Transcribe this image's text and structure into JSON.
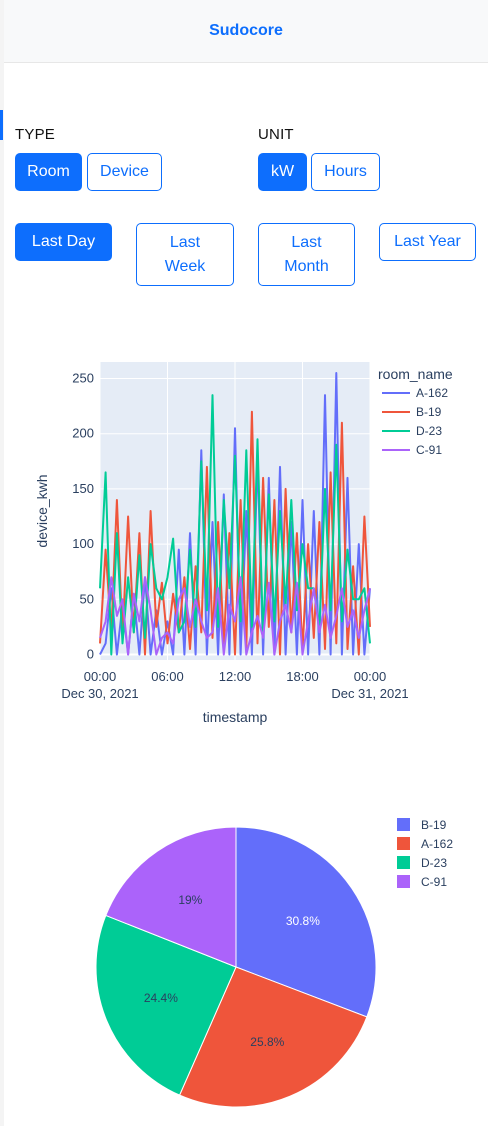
{
  "header": {
    "brand": "Sudocore"
  },
  "filters": {
    "type_label": "TYPE",
    "type_options": [
      "Room",
      "Device"
    ],
    "type_selected": "Room",
    "unit_label": "UNIT",
    "unit_options": [
      "kW",
      "Hours"
    ],
    "unit_selected": "kW",
    "period_options": [
      {
        "line1": "Last Day",
        "line2": ""
      },
      {
        "line1": "Last",
        "line2": "Week"
      },
      {
        "line1": "Last",
        "line2": "Month"
      },
      {
        "line1": "Last Year",
        "line2": ""
      }
    ],
    "period_selected": "Last Day"
  },
  "colors": {
    "accent": "#0d6efd",
    "plot_bg": "#e5ecf6",
    "A-162": "#636efa",
    "B-19": "#ef553b",
    "D-23": "#00cc96",
    "C-91": "#ab63fa"
  },
  "chart_data": [
    {
      "type": "line",
      "xlabel": "timestamp",
      "ylabel": "device_kwh",
      "ylim": [
        -5,
        265
      ],
      "yticks": [
        0,
        50,
        100,
        150,
        200,
        250
      ],
      "xlim": [
        0,
        24
      ],
      "xticks": [
        {
          "x": 0,
          "label": "00:00",
          "sub": "Dec 30, 2021"
        },
        {
          "x": 6,
          "label": "06:00",
          "sub": ""
        },
        {
          "x": 12,
          "label": "12:00",
          "sub": ""
        },
        {
          "x": 18,
          "label": "18:00",
          "sub": ""
        },
        {
          "x": 24,
          "label": "00:00",
          "sub": "Dec 31, 2021"
        }
      ],
      "legend_title": "room_name",
      "legend_position": "right",
      "grid": true,
      "series": [
        {
          "name": "A-162",
          "x": [
            0,
            0.5,
            1,
            1.5,
            2,
            2.5,
            3,
            3.5,
            4,
            4.5,
            5,
            5.5,
            6,
            6.5,
            7,
            7.5,
            8,
            8.5,
            9,
            9.5,
            10,
            10.5,
            11,
            11.5,
            12,
            12.5,
            13,
            13.5,
            14,
            14.5,
            15,
            15.5,
            16,
            16.5,
            17,
            17.5,
            18,
            18.5,
            19,
            19.5,
            20,
            20.5,
            21,
            21.5,
            22,
            22.5,
            23,
            23.5,
            24
          ],
          "y": [
            0,
            10,
            60,
            0,
            45,
            0,
            55,
            0,
            70,
            0,
            40,
            0,
            30,
            0,
            95,
            0,
            110,
            0,
            185,
            0,
            120,
            0,
            145,
            0,
            205,
            0,
            130,
            0,
            180,
            0,
            160,
            0,
            170,
            0,
            120,
            0,
            140,
            0,
            130,
            0,
            235,
            0,
            255,
            0,
            160,
            0,
            100,
            0,
            60
          ]
        },
        {
          "name": "B-19",
          "x": [
            0,
            0.5,
            1,
            1.5,
            2,
            2.5,
            3,
            3.5,
            4,
            4.5,
            5,
            5.5,
            6,
            6.5,
            7,
            7.5,
            8,
            8.5,
            9,
            9.5,
            10,
            10.5,
            11,
            11.5,
            12,
            12.5,
            13,
            13.5,
            14,
            14.5,
            15,
            15.5,
            16,
            16.5,
            17,
            17.5,
            18,
            18.5,
            19,
            19.5,
            20,
            20.5,
            21,
            21.5,
            22,
            22.5,
            23,
            23.5,
            24
          ],
          "y": [
            10,
            95,
            20,
            140,
            15,
            125,
            20,
            110,
            0,
            130,
            25,
            65,
            10,
            55,
            20,
            70,
            5,
            80,
            20,
            170,
            15,
            120,
            10,
            110,
            0,
            140,
            5,
            220,
            10,
            160,
            25,
            140,
            0,
            150,
            20,
            110,
            5,
            100,
            15,
            120,
            5,
            165,
            10,
            210,
            5,
            80,
            0,
            125,
            25
          ]
        },
        {
          "name": "D-23",
          "x": [
            0,
            0.5,
            1,
            1.5,
            2,
            2.5,
            3,
            3.5,
            4,
            4.5,
            5,
            5.5,
            6,
            6.5,
            7,
            7.5,
            8,
            8.5,
            9,
            9.5,
            10,
            10.5,
            11,
            11.5,
            12,
            12.5,
            13,
            13.5,
            14,
            14.5,
            15,
            15.5,
            16,
            16.5,
            17,
            17.5,
            18,
            18.5,
            19,
            19.5,
            20,
            20.5,
            21,
            21.5,
            22,
            22.5,
            23,
            23.5,
            24
          ],
          "y": [
            60,
            165,
            0,
            110,
            10,
            70,
            20,
            90,
            15,
            100,
            60,
            50,
            70,
            105,
            20,
            30,
            95,
            25,
            175,
            40,
            235,
            25,
            140,
            60,
            180,
            30,
            185,
            25,
            195,
            15,
            145,
            30,
            130,
            45,
            140,
            40,
            100,
            60,
            60,
            25,
            150,
            40,
            190,
            30,
            95,
            50,
            50,
            60,
            10
          ]
        },
        {
          "name": "C-91",
          "x": [
            0,
            0.5,
            1,
            1.5,
            2,
            2.5,
            3,
            3.5,
            4,
            4.5,
            5,
            5.5,
            6,
            6.5,
            7,
            7.5,
            8,
            8.5,
            9,
            9.5,
            10,
            10.5,
            11,
            11.5,
            12,
            12.5,
            13,
            13.5,
            14,
            14.5,
            15,
            15.5,
            16,
            16.5,
            17,
            17.5,
            18,
            18.5,
            19,
            19.5,
            20,
            20.5,
            21,
            21.5,
            22,
            22.5,
            23,
            23.5,
            24
          ],
          "y": [
            15,
            30,
            70,
            35,
            50,
            0,
            55,
            30,
            70,
            40,
            0,
            15,
            20,
            10,
            50,
            60,
            25,
            50,
            30,
            15,
            20,
            60,
            0,
            45,
            30,
            70,
            0,
            20,
            35,
            15,
            65,
            0,
            30,
            45,
            20,
            65,
            0,
            30,
            60,
            20,
            45,
            15,
            35,
            60,
            25,
            40,
            15,
            40,
            60
          ]
        }
      ]
    },
    {
      "type": "pie",
      "legend_position": "top-right",
      "slices": [
        {
          "label": "B-19",
          "value": 30.8,
          "text": "30.8%",
          "color": "#636efa"
        },
        {
          "label": "A-162",
          "value": 25.8,
          "text": "25.8%",
          "color": "#ef553b"
        },
        {
          "label": "D-23",
          "value": 24.4,
          "text": "24.4%",
          "color": "#00cc96"
        },
        {
          "label": "C-91",
          "value": 19.0,
          "text": "19%",
          "color": "#ab63fa"
        }
      ]
    }
  ]
}
